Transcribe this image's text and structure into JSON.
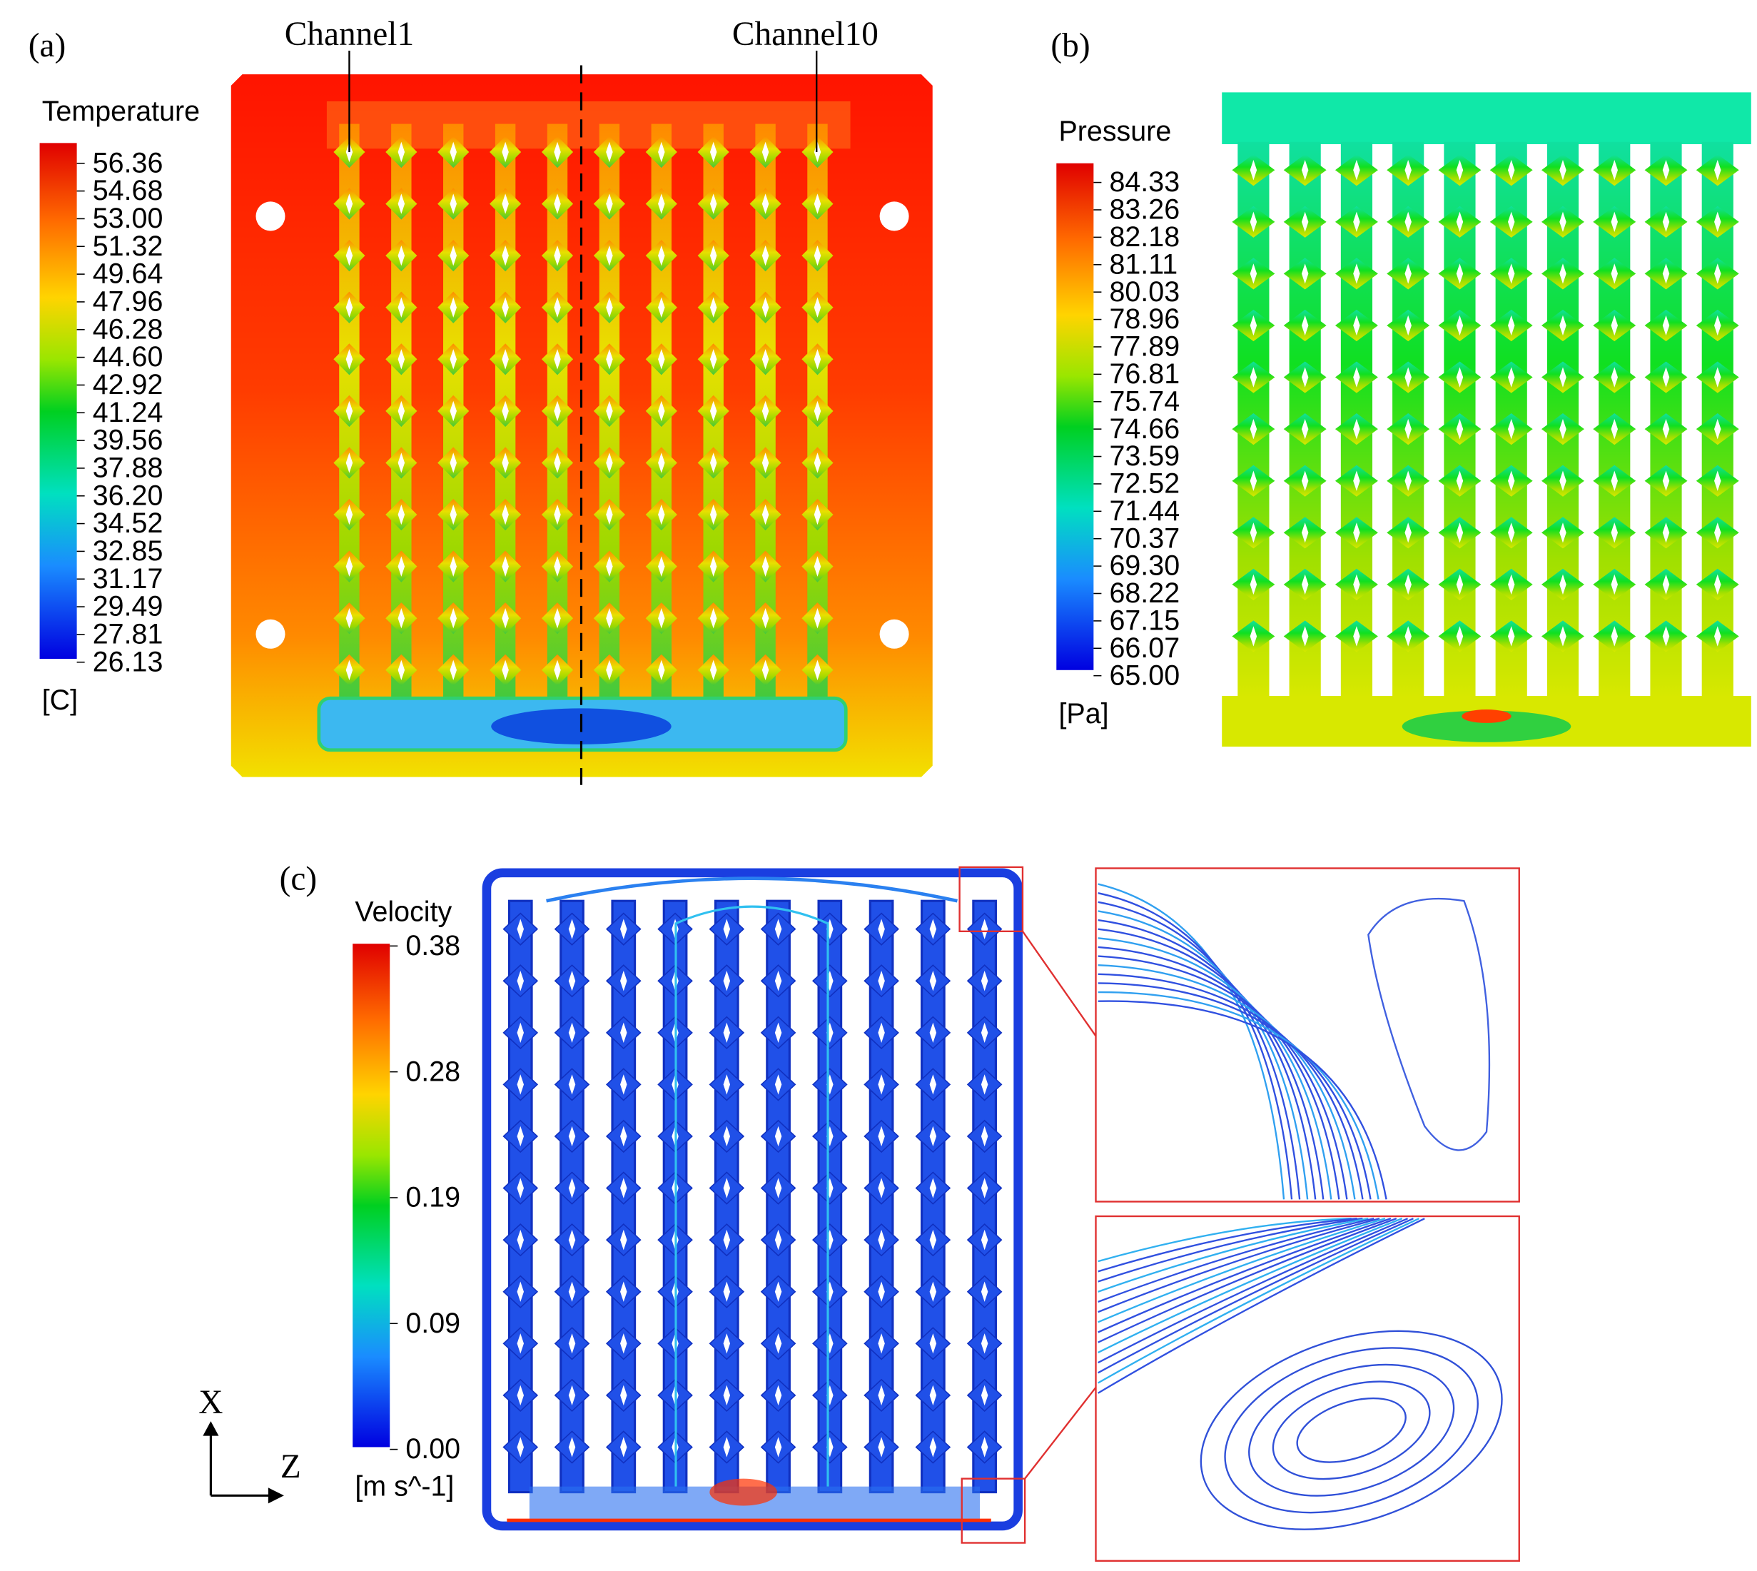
{
  "panels": {
    "a": {
      "label": "(a)",
      "annotations": [
        "Channel1",
        "Channel10"
      ],
      "colorbar": {
        "title": "Temperature",
        "unit": "[C]",
        "ticks": [
          "56.36",
          "54.68",
          "53.00",
          "51.32",
          "49.64",
          "47.96",
          "46.28",
          "44.60",
          "42.92",
          "41.24",
          "39.56",
          "37.88",
          "36.20",
          "34.52",
          "32.85",
          "31.17",
          "29.49",
          "27.81",
          "26.13"
        ]
      }
    },
    "b": {
      "label": "(b)",
      "colorbar": {
        "title": "Pressure",
        "unit": "[Pa]",
        "ticks": [
          "84.33",
          "83.26",
          "82.18",
          "81.11",
          "80.03",
          "78.96",
          "77.89",
          "76.81",
          "75.74",
          "74.66",
          "73.59",
          "72.52",
          "71.44",
          "70.37",
          "69.30",
          "68.22",
          "67.15",
          "66.07",
          "65.00"
        ]
      }
    },
    "c": {
      "label": "(c)",
      "axes": [
        "X",
        "Z"
      ],
      "colorbar": {
        "title": "Velocity",
        "unit": "[m s^-1]",
        "ticks": [
          "0.38",
          "0.28",
          "0.19",
          "0.09",
          "0.00"
        ]
      }
    }
  }
}
